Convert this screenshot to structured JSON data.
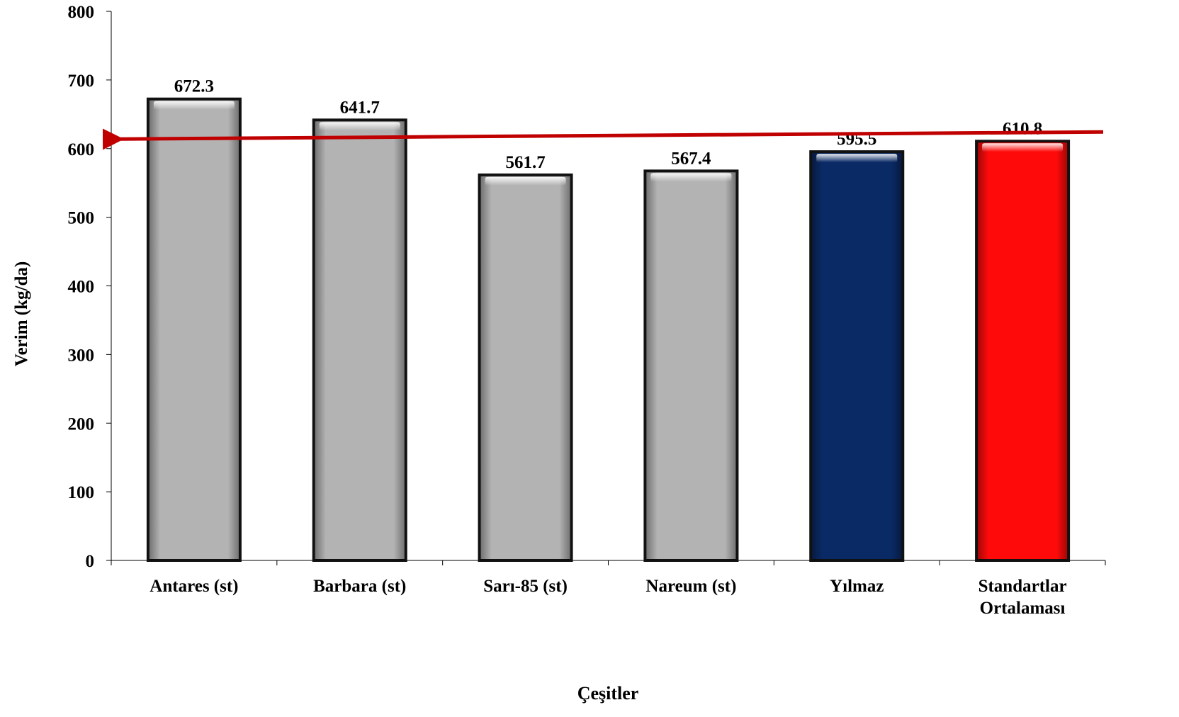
{
  "chart_data": {
    "type": "bar",
    "title": "",
    "xlabel": "Çeşitler",
    "ylabel": "Verim (kg/da)",
    "ylim": [
      0,
      800
    ],
    "yticks": [
      0,
      100,
      200,
      300,
      400,
      500,
      600,
      700,
      800
    ],
    "categories": [
      [
        "Antares (st)"
      ],
      [
        "Barbara (st)"
      ],
      [
        "Sarı-85 (st)"
      ],
      [
        "Nareum (st)"
      ],
      [
        "Yılmaz"
      ],
      [
        "Standartlar",
        "Ortalaması"
      ]
    ],
    "values": [
      672.3,
      641.7,
      561.7,
      567.4,
      595.5,
      610.8
    ],
    "data_labels": [
      "672.3",
      "641.7",
      "561.7",
      "567.4",
      "595.5",
      "610.8"
    ],
    "bar_colors": [
      "#b3b3b3",
      "#b3b3b3",
      "#b3b3b3",
      "#b3b3b3",
      "#0a2a66",
      "#ff0a0a"
    ],
    "reference_line": {
      "value": 610.8,
      "color": "#c00000",
      "arrow": "left"
    },
    "grid": false,
    "legend": "none"
  }
}
